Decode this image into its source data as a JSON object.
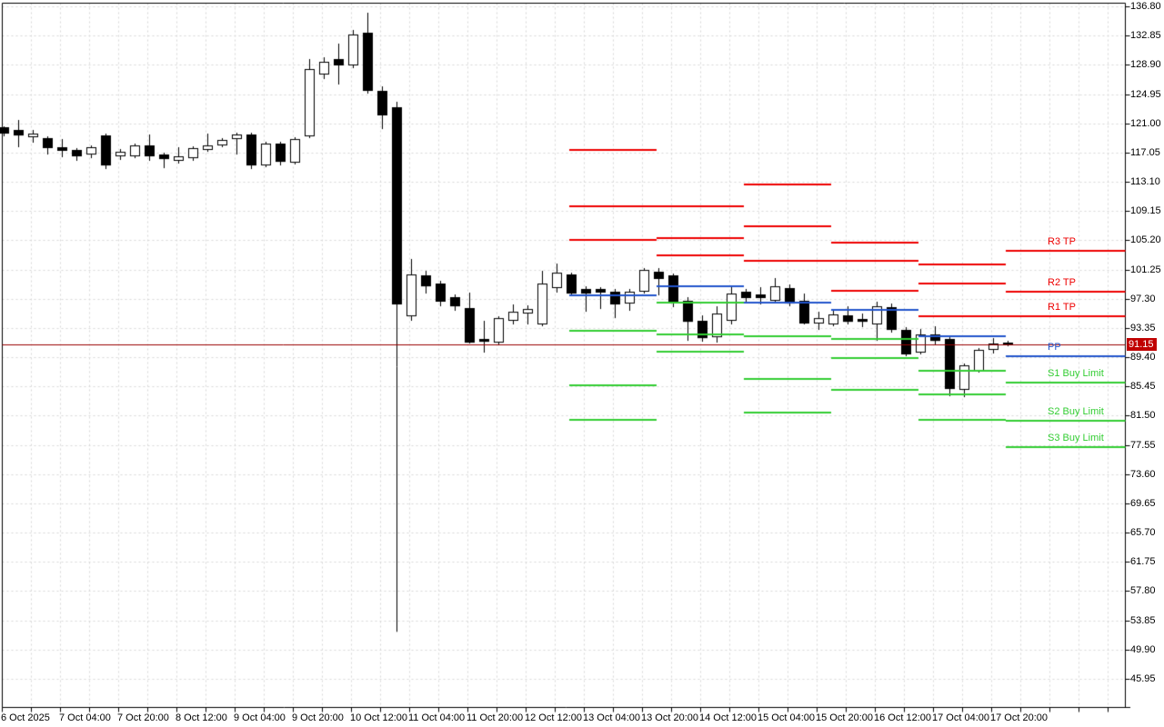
{
  "window": {
    "title": "candlestick price chart with daily pivot levels"
  },
  "current_price": {
    "label": "91.15",
    "value": 91.15
  },
  "price_axis": {
    "labels": [
      "136.80",
      "132.85",
      "128.90",
      "124.95",
      "121.00",
      "117.05",
      "113.10",
      "109.15",
      "105.20",
      "101.25",
      "97.30",
      "93.35",
      "89.40",
      "85.45",
      "81.50",
      "77.55",
      "73.60",
      "69.65",
      "65.70",
      "61.75",
      "57.80",
      "53.85",
      "49.90",
      "45.95"
    ]
  },
  "time_axis": {
    "labels": [
      "6 Oct 2025",
      "7 Oct 04:00",
      "7 Oct 20:00",
      "8 Oct 12:00",
      "9 Oct 04:00",
      "9 Oct 20:00",
      "10 Oct 12:00",
      "11 Oct 04:00",
      "11 Oct 20:00",
      "12 Oct 12:00",
      "13 Oct 04:00",
      "13 Oct 20:00",
      "14 Oct 12:00",
      "15 Oct 04:00",
      "15 Oct 20:00",
      "16 Oct 12:00",
      "17 Oct 04:00",
      "17 Oct 20:00"
    ]
  },
  "colors": {
    "background": "#FFFFFF",
    "grid": "#D8D8D8",
    "axis": "#000000",
    "candle_outline": "#000000",
    "bull_body": "#FFFFFF",
    "bear_body": "#000000",
    "resistance": "#EE0000",
    "pivot": "#2255CC",
    "support": "#32CD32",
    "price_line": "#990000",
    "price_tag_bg": "#C00000",
    "price_tag_text": "#FFFFFF"
  },
  "chart_data": {
    "type": "candlestick",
    "title": "",
    "xlabel": "",
    "ylabel": "",
    "grid": true,
    "legend": false,
    "y_ticks": [
      136.8,
      132.85,
      128.9,
      124.95,
      121.0,
      117.05,
      113.1,
      109.15,
      105.2,
      101.25,
      97.3,
      93.35,
      89.4,
      85.45,
      81.5,
      77.55,
      73.6,
      69.65,
      65.7,
      61.75,
      57.8,
      53.85,
      49.9,
      45.95
    ],
    "ylim": [
      44.6,
      137.3
    ],
    "x_label_every_n_candles": 4,
    "current_price": 91.15,
    "candles_ohlc": [
      [
        120.47,
        120.59,
        119.24,
        119.61
      ],
      [
        120.1,
        121.45,
        117.77,
        119.36
      ],
      [
        119.12,
        120.1,
        118.38,
        119.61
      ],
      [
        119.0,
        119.24,
        116.78,
        117.65
      ],
      [
        117.77,
        118.87,
        116.42,
        117.28
      ],
      [
        117.4,
        117.65,
        115.93,
        116.54
      ],
      [
        116.78,
        118.01,
        116.29,
        117.77
      ],
      [
        119.36,
        119.61,
        114.82,
        115.31
      ],
      [
        116.54,
        117.52,
        116.05,
        117.15
      ],
      [
        116.54,
        118.26,
        116.29,
        118.01
      ],
      [
        118.01,
        119.49,
        115.93,
        116.54
      ],
      [
        116.78,
        117.03,
        114.94,
        116.17
      ],
      [
        115.93,
        117.77,
        115.56,
        116.54
      ],
      [
        116.29,
        117.89,
        115.93,
        117.65
      ],
      [
        117.4,
        119.61,
        117.15,
        118.01
      ],
      [
        118.01,
        119.0,
        117.77,
        118.75
      ],
      [
        118.87,
        119.73,
        116.78,
        119.49
      ],
      [
        119.49,
        119.73,
        114.82,
        115.31
      ],
      [
        115.31,
        118.51,
        115.07,
        118.26
      ],
      [
        118.26,
        118.51,
        115.31,
        115.8
      ],
      [
        115.68,
        119.12,
        115.44,
        118.87
      ],
      [
        119.24,
        129.68,
        119.0,
        128.33
      ],
      [
        127.59,
        129.92,
        126.98,
        129.31
      ],
      [
        129.68,
        131.77,
        126.24,
        128.82
      ],
      [
        128.82,
        133.61,
        128.45,
        133.0
      ],
      [
        133.24,
        135.94,
        125.01,
        125.38
      ],
      [
        125.38,
        125.99,
        120.22,
        122.07
      ],
      [
        123.17,
        123.91,
        52.3,
        96.53
      ],
      [
        94.93,
        102.67,
        94.32,
        100.58
      ],
      [
        100.46,
        101.07,
        98.0,
        98.98
      ],
      [
        99.35,
        99.72,
        96.28,
        96.9
      ],
      [
        97.51,
        97.88,
        95.67,
        96.28
      ],
      [
        96.04,
        98.13,
        91.25,
        91.37
      ],
      [
        91.86,
        94.32,
        90.02,
        91.49
      ],
      [
        91.37,
        94.93,
        91.0,
        94.68
      ],
      [
        94.32,
        96.53,
        93.83,
        95.54
      ],
      [
        95.3,
        96.41,
        93.83,
        95.91
      ],
      [
        93.83,
        101.07,
        93.58,
        99.35
      ],
      [
        98.74,
        102.05,
        98.13,
        100.82
      ],
      [
        100.58,
        100.82,
        97.76,
        98.0
      ],
      [
        98.62,
        98.98,
        95.54,
        98.0
      ],
      [
        98.62,
        98.86,
        95.91,
        98.13
      ],
      [
        98.25,
        98.62,
        94.68,
        96.53
      ],
      [
        96.65,
        98.62,
        95.67,
        98.25
      ],
      [
        98.25,
        101.44,
        98.0,
        101.19
      ],
      [
        100.95,
        101.44,
        97.76,
        99.97
      ],
      [
        100.46,
        100.7,
        96.16,
        96.77
      ],
      [
        97.02,
        97.51,
        91.61,
        94.19
      ],
      [
        94.32,
        95.05,
        91.49,
        91.98
      ],
      [
        92.1,
        96.28,
        91.37,
        95.3
      ],
      [
        94.32,
        98.98,
        93.83,
        98.0
      ],
      [
        98.25,
        98.62,
        96.9,
        97.39
      ],
      [
        97.88,
        98.86,
        96.53,
        97.39
      ],
      [
        97.02,
        100.09,
        96.77,
        98.98
      ],
      [
        98.74,
        99.23,
        96.28,
        96.65
      ],
      [
        97.02,
        98.0,
        93.83,
        93.95
      ],
      [
        93.95,
        95.54,
        93.09,
        94.68
      ],
      [
        93.83,
        95.79,
        93.58,
        95.18
      ],
      [
        95.05,
        96.28,
        93.83,
        94.19
      ],
      [
        94.56,
        95.3,
        93.46,
        94.19
      ],
      [
        93.83,
        96.9,
        91.61,
        96.28
      ],
      [
        96.16,
        96.65,
        92.72,
        93.09
      ],
      [
        93.09,
        93.46,
        89.53,
        89.78
      ],
      [
        90.02,
        93.21,
        89.78,
        92.47
      ],
      [
        92.47,
        93.58,
        91.12,
        91.61
      ],
      [
        91.86,
        92.1,
        84.13,
        85.11
      ],
      [
        84.99,
        88.55,
        84.0,
        88.3
      ],
      [
        87.57,
        90.63,
        87.32,
        90.39
      ],
      [
        90.39,
        91.98,
        89.9,
        91.25
      ],
      [
        91.37,
        91.61,
        90.88,
        91.15
      ]
    ],
    "pivot_segments": [
      {
        "start_index": 39,
        "end_index": 45,
        "levels": {
          "R3": 117.4,
          "R2": 109.79,
          "R1": 105.24,
          "PP": 97.76,
          "S1": 92.97,
          "S2": 85.6,
          "S3": 80.93
        }
      },
      {
        "start_index": 45,
        "end_index": 51,
        "levels": {
          "R3": 109.79,
          "R2": 105.49,
          "R1": 103.16,
          "PP": 98.98,
          "S1": 96.77,
          "S2": 92.47,
          "S3": 90.14
        }
      },
      {
        "start_index": 51,
        "end_index": 57,
        "levels": {
          "R3": 112.73,
          "R2": 107.08,
          "R1": 102.42,
          "PP": 96.77,
          "S1": 92.23,
          "S2": 86.46,
          "S3": 81.92
        }
      },
      {
        "start_index": 57,
        "end_index": 63,
        "levels": {
          "R3": 104.87,
          "R2": 102.42,
          "R1": 98.37,
          "PP": 95.79,
          "S1": 91.86,
          "S2": 89.29,
          "S3": 84.99
        }
      },
      {
        "start_index": 63,
        "end_index": 69,
        "levels": {
          "R3": 101.93,
          "R2": 99.35,
          "R1": 94.93,
          "PP": 92.23,
          "S1": 87.57,
          "S2": 84.38,
          "S3": 80.93
        }
      },
      {
        "start_index": 69,
        "end_index": null,
        "levels": {
          "R3": 103.77,
          "R2": 98.25,
          "R1": 94.93,
          "PP": 89.53,
          "S1": 85.97,
          "S2": 80.81,
          "S3": 77.25
        },
        "labels": {
          "R3": "R3 TP",
          "R2": "R2 TP",
          "R1": "R1 TP",
          "PP": "PP",
          "S1": "S1 Buy Limit",
          "S2": "S2 Buy Limit",
          "S3": "S3 Buy Limit"
        }
      }
    ]
  }
}
